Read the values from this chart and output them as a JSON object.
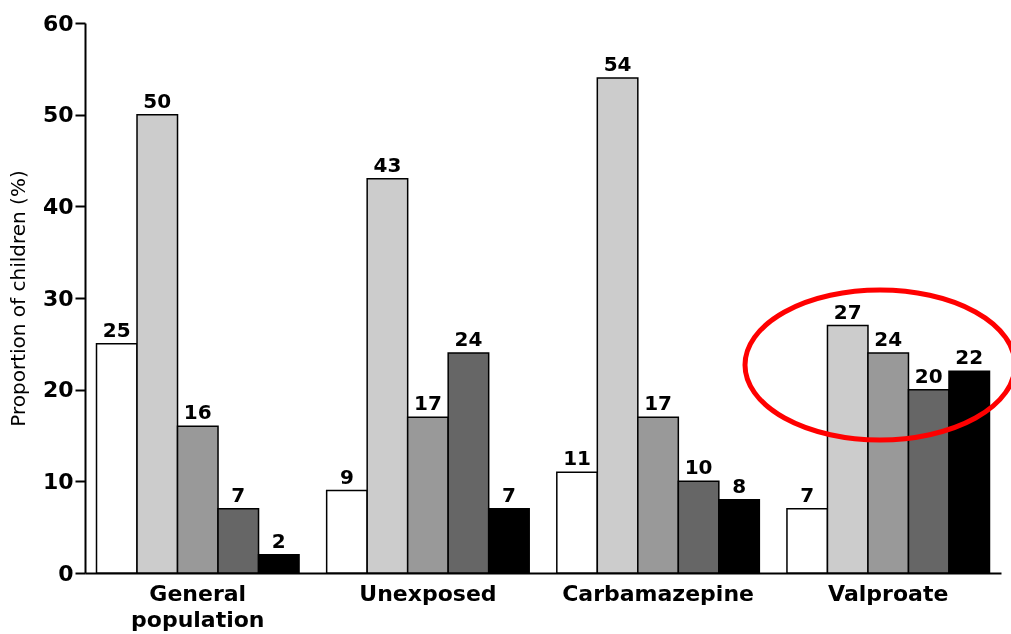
{
  "chart_data": {
    "type": "bar",
    "ylabel": "Proportion of children (%)",
    "categories": [
      "General population",
      "Unexposed",
      "Carbamazepine",
      "Valproate"
    ],
    "series": [
      {
        "color": "#ffffff",
        "values": [
          25,
          9,
          11,
          7
        ]
      },
      {
        "color": "#cccccc",
        "values": [
          50,
          43,
          54,
          27
        ]
      },
      {
        "color": "#999999",
        "values": [
          16,
          17,
          17,
          24
        ]
      },
      {
        "color": "#666666",
        "values": [
          7,
          24,
          10,
          20
        ]
      },
      {
        "color": "#000000",
        "values": [
          2,
          7,
          8,
          22
        ]
      }
    ],
    "ylim": [
      0,
      60
    ],
    "yticks": [
      0,
      10,
      20,
      30,
      40,
      50,
      60
    ],
    "grid": false,
    "legend": false,
    "data_labels": true
  }
}
